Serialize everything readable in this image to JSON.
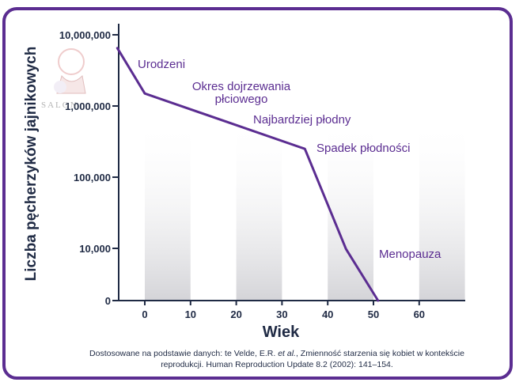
{
  "colors": {
    "frame": "#5b2d91",
    "line": "#5b2d91",
    "text": "#1f2a44",
    "stage_text": "#5b2d91",
    "band": "#d4d4d8"
  },
  "chart_data": {
    "type": "line",
    "title": "",
    "xlabel": "Wiek",
    "ylabel": "Liczba pęcherzyków jajnikowych",
    "y_scale": "log",
    "x_ticks": [
      0,
      10,
      20,
      30,
      40,
      50,
      60
    ],
    "y_ticks": [
      {
        "value": 0,
        "label": "0"
      },
      {
        "value": 10000,
        "label": "10,000"
      },
      {
        "value": 100000,
        "label": "100,000"
      },
      {
        "value": 1000000,
        "label": "1,000,000"
      },
      {
        "value": 10000000,
        "label": "10,000,000"
      }
    ],
    "xlim": [
      -6,
      70
    ],
    "shaded_bands": [
      [
        0,
        10
      ],
      [
        20,
        30
      ],
      [
        40,
        50
      ],
      [
        60,
        70
      ]
    ],
    "grid": false,
    "series": [
      {
        "points": [
          {
            "x": -6,
            "y": 6500000
          },
          {
            "x": 0,
            "y": 1500000
          },
          {
            "x": 35,
            "y": 250000
          },
          {
            "x": 44,
            "y": 9000
          },
          {
            "x": 51,
            "y": 0
          }
        ]
      }
    ],
    "annotations": [
      {
        "text": "Urodzeni"
      },
      {
        "text": "Okres dojrzewania"
      },
      {
        "text": "płciowego"
      },
      {
        "text": "Najbardziej płodny"
      },
      {
        "text": "Spadek płodności"
      },
      {
        "text": "Menopauza"
      }
    ]
  },
  "source_note": {
    "prefix": "Dostosowane na podstawie danych: te Velde, E.R. ",
    "italic": "et al.",
    "suffix": ", Zmienność starzenia się kobiet w kontekście reprodukcji. Human Reproduction Update 8.2 (2002): 141–154."
  },
  "watermark": {
    "text": "SALON"
  }
}
